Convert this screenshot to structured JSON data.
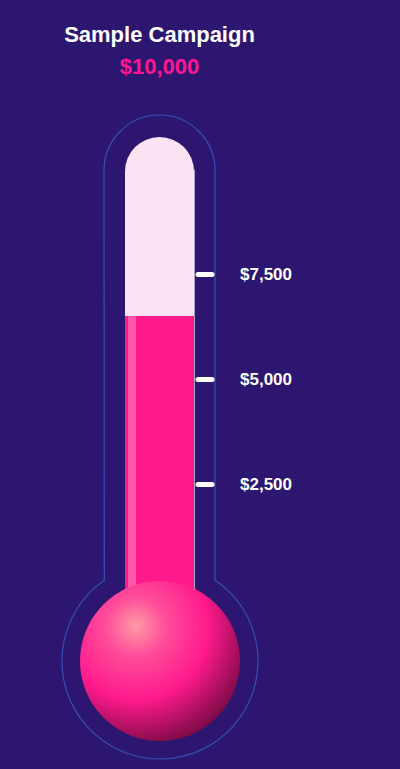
{
  "chart_data": {
    "type": "thermometer",
    "title": "Sample Campaign",
    "goal": {
      "value": 10000,
      "label": "$10,000"
    },
    "values": [
      6500
    ],
    "color": "#ff1a8c",
    "ylim": [
      0,
      10000
    ],
    "yticks": [
      {
        "value": 2500,
        "label": "$2,500"
      },
      {
        "value": 5000,
        "label": "$5,000"
      },
      {
        "value": 7500,
        "label": "$7,500"
      }
    ]
  }
}
